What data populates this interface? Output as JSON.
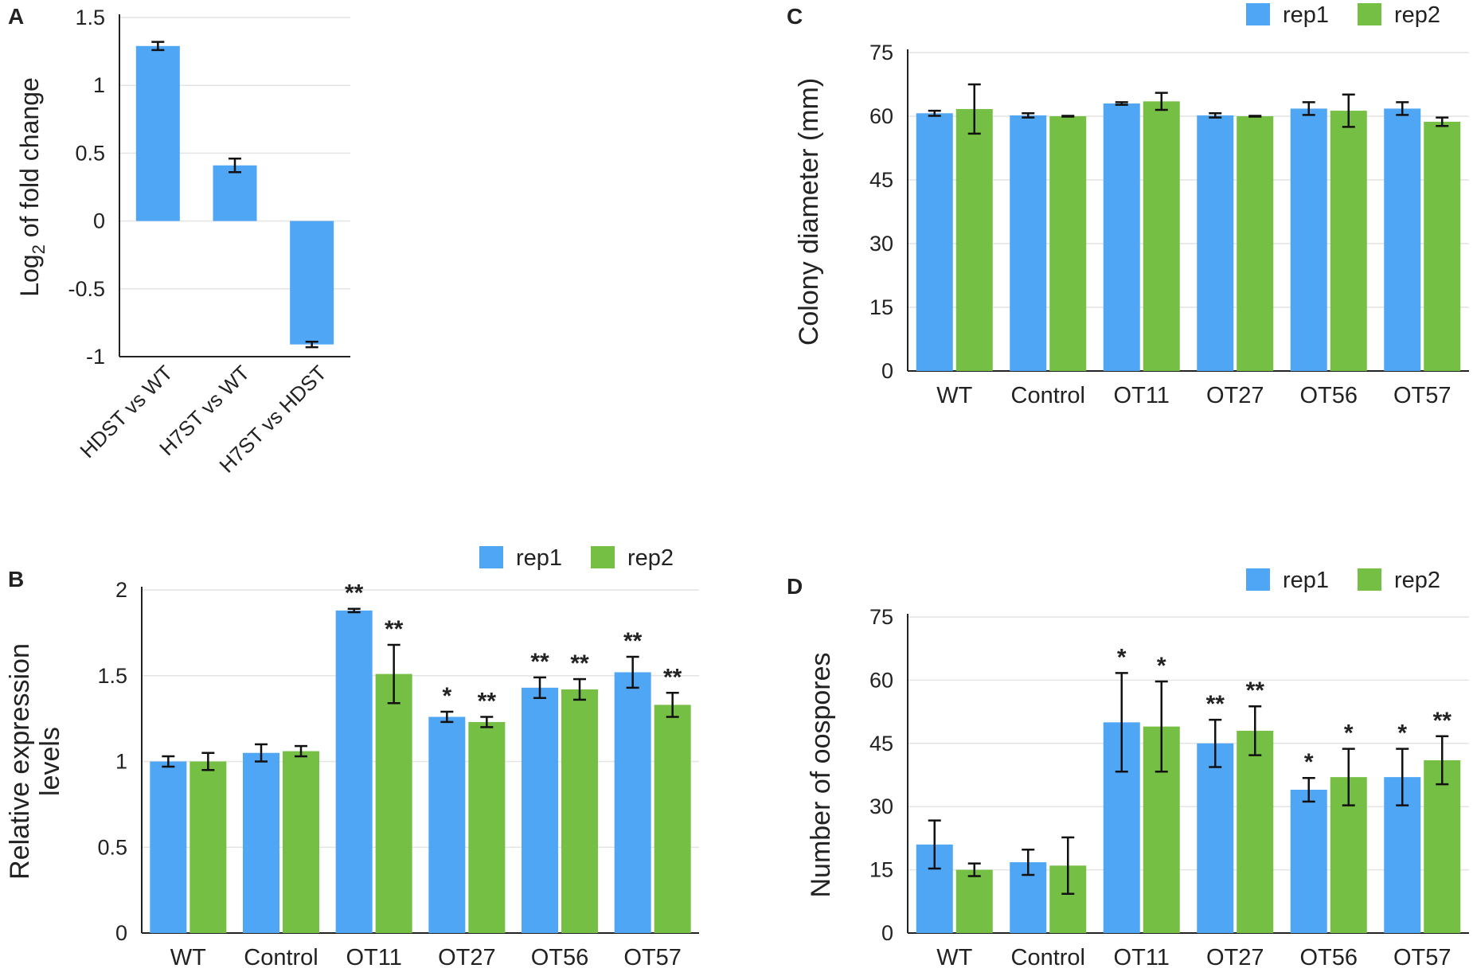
{
  "figure": {
    "colors": {
      "rep1": "#4fa6f5",
      "rep2": "#74bf44",
      "single": "#4fa6f5",
      "axis": "#222222",
      "grid": "#e4e4e4"
    }
  },
  "chart_data": [
    {
      "panel": "A",
      "type": "bar",
      "title": "",
      "xlabel": "",
      "ylabel_main": "Log",
      "ylabel_sub": "2",
      "ylabel_rest": " of fold change",
      "ylim": [
        -1,
        1.5
      ],
      "yticks": [
        -1,
        -0.5,
        0,
        0.5,
        1,
        1.5
      ],
      "ytick_labels": [
        "-1",
        "-0.5",
        "0",
        "0.5",
        "1",
        "1.5"
      ],
      "categories": [
        "HDST vs WT",
        "H7ST vs WT",
        "H7ST vs HDST"
      ],
      "series": [
        {
          "name": "",
          "values": [
            1.29,
            0.41,
            -0.91
          ],
          "errors": [
            0.03,
            0.05,
            0.02
          ],
          "stars": [
            "",
            "",
            ""
          ]
        }
      ]
    },
    {
      "panel": "B",
      "type": "bar",
      "title": "",
      "xlabel": "",
      "ylabel": [
        "Relative expression",
        "levels"
      ],
      "ylim": [
        0,
        2
      ],
      "yticks": [
        0,
        0.5,
        1,
        1.5,
        2
      ],
      "ytick_labels": [
        "0",
        "0.5",
        "1",
        "1.5",
        "2"
      ],
      "legend": [
        "rep1",
        "rep2"
      ],
      "categories": [
        "WT",
        "Control",
        "OT11",
        "OT27",
        "OT56",
        "OT57"
      ],
      "series": [
        {
          "name": "rep1",
          "values": [
            1.0,
            1.05,
            1.88,
            1.26,
            1.43,
            1.52
          ],
          "errors": [
            0.03,
            0.05,
            0.01,
            0.03,
            0.06,
            0.09
          ],
          "stars": [
            "",
            "",
            "**",
            "*",
            "**",
            "**"
          ]
        },
        {
          "name": "rep2",
          "values": [
            1.0,
            1.06,
            1.51,
            1.23,
            1.42,
            1.33
          ],
          "errors": [
            0.05,
            0.03,
            0.17,
            0.03,
            0.06,
            0.07
          ],
          "stars": [
            "",
            "",
            "**",
            "**",
            "**",
            "**"
          ]
        }
      ]
    },
    {
      "panel": "C",
      "type": "bar",
      "title": "",
      "xlabel": "",
      "ylabel": [
        "Colony diameter (mm)"
      ],
      "ylim": [
        0,
        75
      ],
      "yticks": [
        0,
        15,
        30,
        45,
        60,
        75
      ],
      "ytick_labels": [
        "0",
        "15",
        "30",
        "45",
        "60",
        "75"
      ],
      "legend": [
        "rep1",
        "rep2"
      ],
      "categories": [
        "WT",
        "Control",
        "OT11",
        "OT27",
        "OT56",
        "OT57"
      ],
      "series": [
        {
          "name": "rep1",
          "values": [
            60.7,
            60.2,
            63.0,
            60.2,
            61.8,
            61.8
          ],
          "errors": [
            0.6,
            0.5,
            0.3,
            0.5,
            1.5,
            1.5
          ],
          "stars": [
            "",
            "",
            "",
            "",
            "",
            ""
          ]
        },
        {
          "name": "rep2",
          "values": [
            61.7,
            60.0,
            63.5,
            60.0,
            61.3,
            58.7
          ],
          "errors": [
            5.8,
            0.1,
            2.0,
            0.1,
            3.8,
            1.0
          ],
          "stars": [
            "",
            "",
            "",
            "",
            "",
            ""
          ]
        }
      ]
    },
    {
      "panel": "D",
      "type": "bar",
      "title": "",
      "xlabel": "",
      "ylabel": [
        "Number of oospores"
      ],
      "ylim": [
        0,
        75
      ],
      "yticks": [
        0,
        15,
        30,
        45,
        60,
        75
      ],
      "ytick_labels": [
        "0",
        "15",
        "30",
        "45",
        "60",
        "75"
      ],
      "legend": [
        "rep1",
        "rep2"
      ],
      "categories": [
        "WT",
        "Control",
        "OT11",
        "OT27",
        "OT56",
        "OT57"
      ],
      "series": [
        {
          "name": "rep1",
          "values": [
            21.0,
            16.8,
            50.0,
            45.0,
            34.0,
            37.0
          ],
          "errors": [
            5.7,
            3.0,
            11.7,
            5.6,
            2.8,
            6.7
          ],
          "stars": [
            "",
            "",
            "*",
            "**",
            "*",
            "*"
          ]
        },
        {
          "name": "rep2",
          "values": [
            15.0,
            16.0,
            49.0,
            48.0,
            37.0,
            41.0
          ],
          "errors": [
            1.5,
            6.7,
            10.7,
            5.8,
            6.7,
            5.7
          ],
          "stars": [
            "",
            "",
            "*",
            "**",
            "*",
            "**"
          ]
        }
      ]
    }
  ]
}
